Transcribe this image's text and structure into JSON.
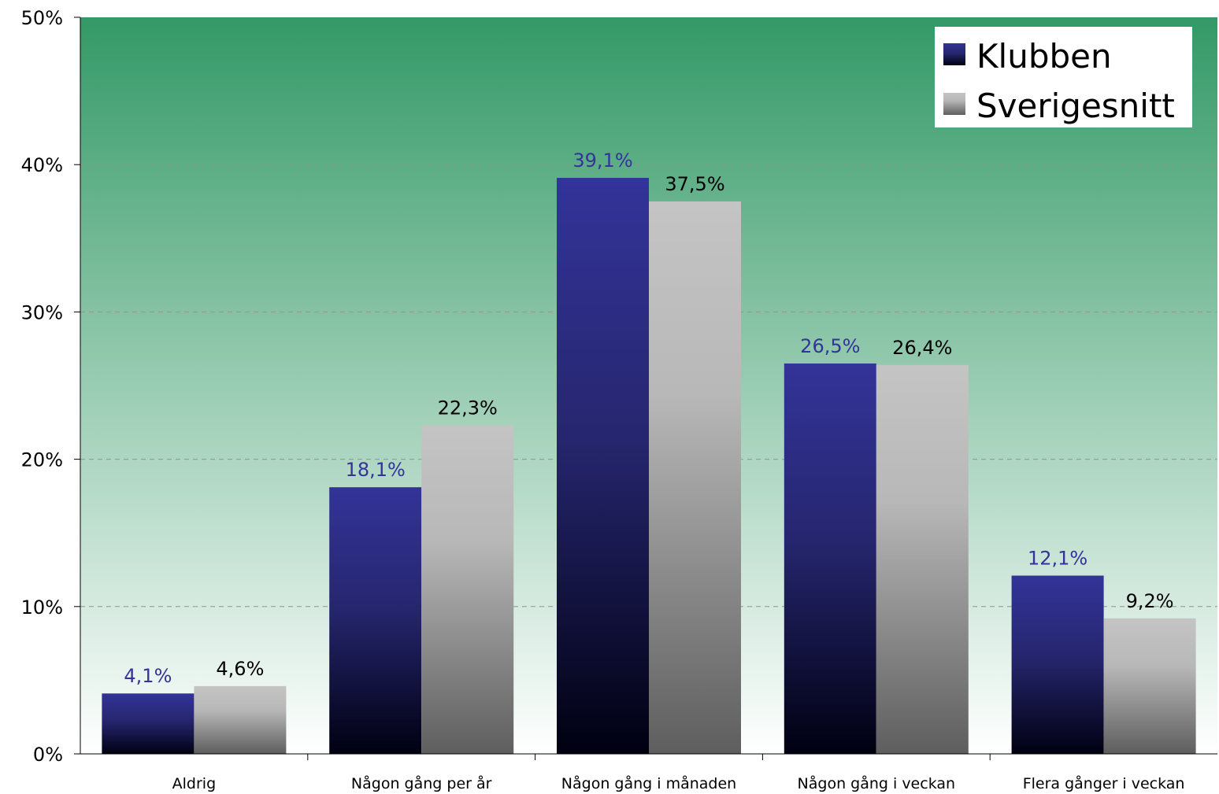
{
  "chart_data": {
    "type": "bar",
    "categories": [
      "Aldrig",
      "Någon gång per år",
      "Någon gång i månaden",
      "Någon gång i veckan",
      "Flera gånger i veckan"
    ],
    "series": [
      {
        "name": "Klubben",
        "values": [
          4.1,
          18.1,
          39.1,
          26.5,
          12.1
        ],
        "labels": [
          "4,1%",
          "18,1%",
          "39,1%",
          "26,5%",
          "12,1%"
        ],
        "color": "#333399",
        "label_color": "#333399"
      },
      {
        "name": "Sverigesnitt",
        "values": [
          4.6,
          22.3,
          37.5,
          26.4,
          9.2
        ],
        "labels": [
          "4,6%",
          "22,3%",
          "37,5%",
          "26,4%",
          "9,2%"
        ],
        "color": "#c0c0c0",
        "label_color": "#000000"
      }
    ],
    "ylim": [
      0,
      50
    ],
    "yticks": [
      0,
      10,
      20,
      30,
      40,
      50
    ],
    "ytick_labels": [
      "0%",
      "10%",
      "20%",
      "30%",
      "40%",
      "50%"
    ],
    "grid": true,
    "legend_position": "top-right",
    "background": {
      "top": "#339966",
      "bottom": "#ffffff"
    }
  }
}
